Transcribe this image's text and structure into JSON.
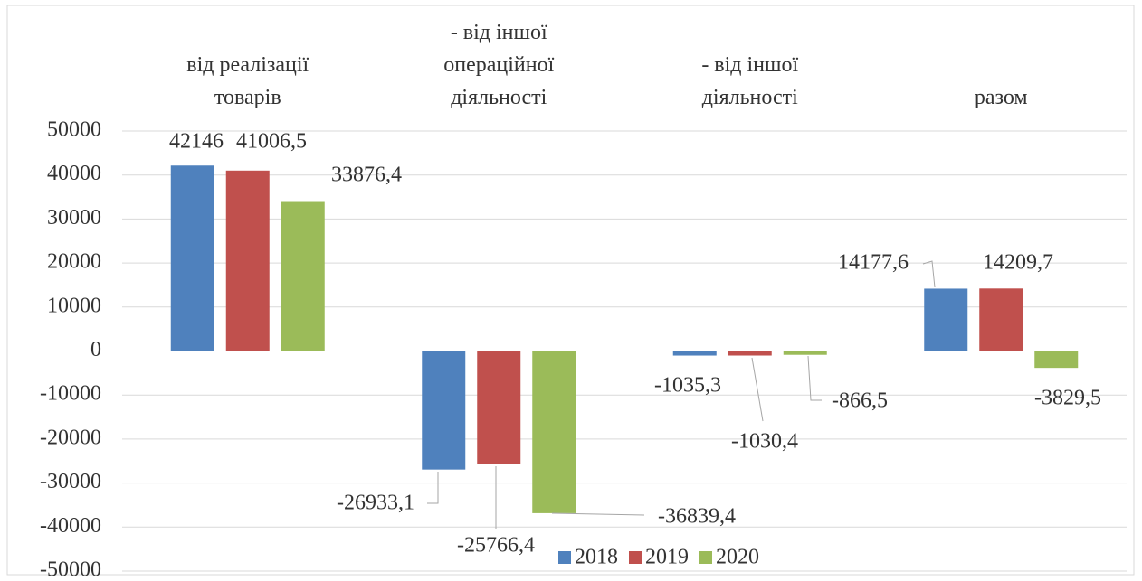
{
  "chart_data": {
    "type": "bar",
    "categories": [
      "від реалізації товарів",
      "- від іншої операційної діяльності",
      "- від іншої діяльності",
      "разом"
    ],
    "series": [
      {
        "name": "2018",
        "color": "#4f81bd",
        "values": [
          42146,
          -26933.1,
          -1035.3,
          14177.6
        ],
        "value_labels": [
          "42146",
          "-26933,1",
          "-1035,3",
          "14177,6"
        ]
      },
      {
        "name": "2019",
        "color": "#c0504d",
        "values": [
          41006.5,
          -25766.4,
          -1030.4,
          14209.7
        ],
        "value_labels": [
          "41006,5",
          "-25766,4",
          "-1030,4",
          "14209,7"
        ]
      },
      {
        "name": "2020",
        "color": "#9bbb59",
        "values": [
          33876.4,
          -36839.4,
          -866.5,
          -3829.5
        ],
        "value_labels": [
          "33876,4",
          "-36839,4",
          "-866,5",
          "-3829,5"
        ]
      }
    ],
    "ylim": [
      -50000,
      50000
    ],
    "yticks": [
      -50000,
      -40000,
      -30000,
      -20000,
      -10000,
      0,
      10000,
      20000,
      30000,
      40000,
      50000
    ],
    "grid": true,
    "legend": "bottom"
  }
}
